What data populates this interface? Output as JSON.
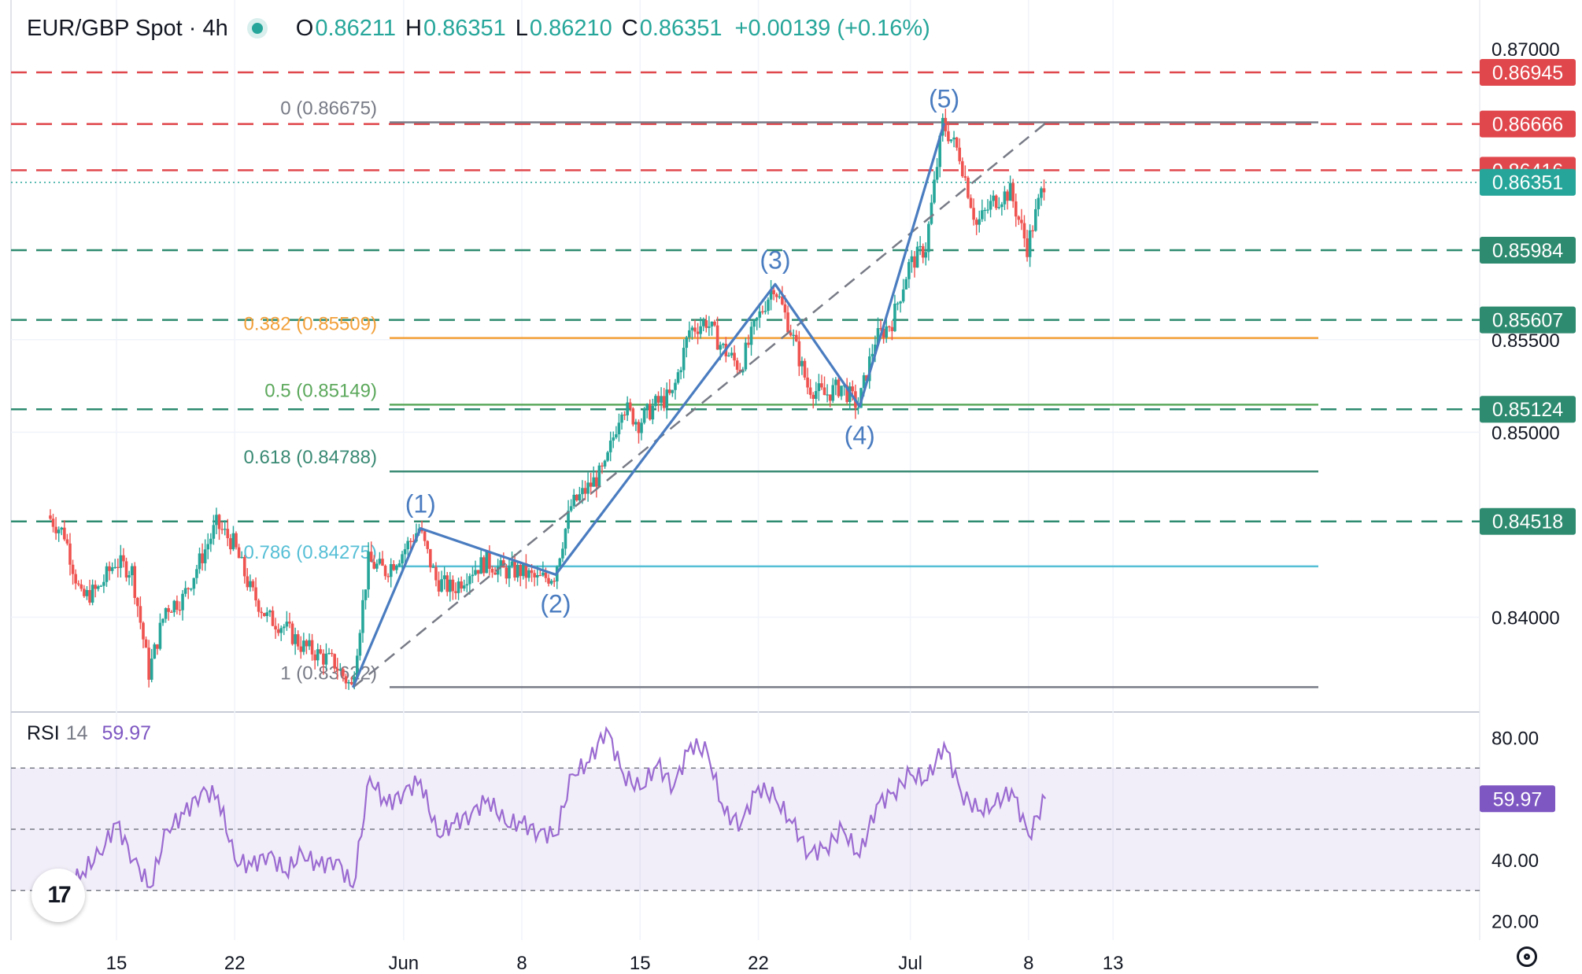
{
  "header": {
    "symbol": "EUR/GBP Spot · 4h",
    "o_label": "O",
    "o_value": "0.86211",
    "h_label": "H",
    "h_value": "0.86351",
    "l_label": "L",
    "l_value": "0.86210",
    "c_label": "C",
    "c_value": "0.86351",
    "change": "+0.00139 (+0.16%)"
  },
  "rsi_header": {
    "label": "RSI",
    "period": "14",
    "value": "59.97"
  },
  "colors": {
    "up": "#26a69a",
    "down": "#ef5350",
    "red_level": "#e0474c",
    "green_level": "#2e8b6f",
    "wave": "#4a7cc0",
    "fib_orange": "#f2a03a",
    "fib_green": "#5ca85c",
    "fib_darkgreen": "#3a8a74",
    "fib_cyan": "#56bfd6",
    "fib_gray": "#787b86",
    "rsi": "#9b6bd1"
  },
  "chart_data": [
    {
      "type": "candlestick",
      "title": "EUR/GBP Spot · 4h",
      "ylim": [
        0.8353,
        0.8706
      ],
      "x_ticks": [
        "15",
        "22",
        "Jun",
        "8",
        "15",
        "22",
        "Jul",
        "8",
        "13"
      ],
      "y_ticks": [
        "0.84000",
        "0.85000",
        "0.85500"
      ],
      "y_tick_values": [
        0.84,
        0.85,
        0.855
      ],
      "top_partial_tick": "0.87000",
      "last_price": "0.86351",
      "horizontal_levels": [
        {
          "value": 0.86945,
          "label": "0.86945",
          "kind": "resistance"
        },
        {
          "value": 0.86666,
          "label": "0.86666",
          "kind": "resistance"
        },
        {
          "value": 0.86416,
          "label": "0.86416",
          "kind": "resistance"
        },
        {
          "value": 0.85984,
          "label": "0.85984",
          "kind": "support"
        },
        {
          "value": 0.85607,
          "label": "0.85607",
          "kind": "support"
        },
        {
          "value": 0.85124,
          "label": "0.85124",
          "kind": "support"
        },
        {
          "value": 0.84518,
          "label": "0.84518",
          "kind": "support"
        }
      ],
      "fibonacci": [
        {
          "ratio": "0",
          "value": 0.86675,
          "label": "0 (0.86675)",
          "color_key": "fib_gray"
        },
        {
          "ratio": "0.382",
          "value": 0.85509,
          "label": "0.382 (0.85509)",
          "color_key": "fib_orange"
        },
        {
          "ratio": "0.5",
          "value": 0.85149,
          "label": "0.5 (0.85149)",
          "color_key": "fib_green"
        },
        {
          "ratio": "0.618",
          "value": 0.84788,
          "label": "0.618 (0.84788)",
          "color_key": "fib_darkgreen"
        },
        {
          "ratio": "0.786",
          "value": 0.84275,
          "label": "0.786 (0.84275)",
          "color_key": "fib_cyan"
        },
        {
          "ratio": "1",
          "value": 0.83622,
          "label": "1 (0.83622)",
          "color_key": "fib_gray"
        }
      ],
      "elliott_waves": [
        {
          "label": "",
          "date": "May 29",
          "value": 0.8362
        },
        {
          "label": "(1)",
          "date": "Jun 2",
          "value": 0.8448
        },
        {
          "label": "(2)",
          "date": "Jun 10",
          "value": 0.8423
        },
        {
          "label": "(3)",
          "date": "Jun 23",
          "value": 0.858
        },
        {
          "label": "(4)",
          "date": "Jun 28",
          "value": 0.8514
        },
        {
          "label": "(5)",
          "date": "Jul 3",
          "value": 0.8667
        }
      ],
      "trend_channel": [
        {
          "date": "May 29",
          "value": 0.8362
        },
        {
          "date": "Jul 9",
          "value": 0.8667
        }
      ],
      "price_path": [
        {
          "date": "May 11",
          "value": 0.8455
        },
        {
          "date": "May 12",
          "value": 0.8445
        },
        {
          "date": "May 13",
          "value": 0.841
        },
        {
          "date": "May 14",
          "value": 0.8415
        },
        {
          "date": "May 15",
          "value": 0.843
        },
        {
          "date": "May 16",
          "value": 0.8425
        },
        {
          "date": "May 17",
          "value": 0.837
        },
        {
          "date": "May 18",
          "value": 0.8405
        },
        {
          "date": "May 19",
          "value": 0.841
        },
        {
          "date": "May 20",
          "value": 0.843
        },
        {
          "date": "May 21",
          "value": 0.845
        },
        {
          "date": "May 22",
          "value": 0.844
        },
        {
          "date": "May 23",
          "value": 0.8415
        },
        {
          "date": "May 24",
          "value": 0.84
        },
        {
          "date": "May 25",
          "value": 0.8395
        },
        {
          "date": "May 26",
          "value": 0.8385
        },
        {
          "date": "May 27",
          "value": 0.838
        },
        {
          "date": "May 28",
          "value": 0.8375
        },
        {
          "date": "May 29",
          "value": 0.8362
        },
        {
          "date": "May 30",
          "value": 0.843
        },
        {
          "date": "May 31",
          "value": 0.8425
        },
        {
          "date": "Jun 1",
          "value": 0.8435
        },
        {
          "date": "Jun 2",
          "value": 0.8448
        },
        {
          "date": "Jun 3",
          "value": 0.842
        },
        {
          "date": "Jun 4",
          "value": 0.8415
        },
        {
          "date": "Jun 5",
          "value": 0.8425
        },
        {
          "date": "Jun 6",
          "value": 0.843
        },
        {
          "date": "Jun 7",
          "value": 0.8425
        },
        {
          "date": "Jun 8",
          "value": 0.8425
        },
        {
          "date": "Jun 9",
          "value": 0.842
        },
        {
          "date": "Jun 10",
          "value": 0.8423
        },
        {
          "date": "Jun 11",
          "value": 0.846
        },
        {
          "date": "Jun 12",
          "value": 0.847
        },
        {
          "date": "Jun 13",
          "value": 0.848
        },
        {
          "date": "Jun 14",
          "value": 0.8515
        },
        {
          "date": "Jun 15",
          "value": 0.8505
        },
        {
          "date": "Jun 16",
          "value": 0.8515
        },
        {
          "date": "Jun 17",
          "value": 0.852
        },
        {
          "date": "Jun 18",
          "value": 0.8555
        },
        {
          "date": "Jun 19",
          "value": 0.856
        },
        {
          "date": "Jun 20",
          "value": 0.8545
        },
        {
          "date": "Jun 21",
          "value": 0.8535
        },
        {
          "date": "Jun 22",
          "value": 0.856
        },
        {
          "date": "Jun 23",
          "value": 0.858
        },
        {
          "date": "Jun 24",
          "value": 0.8555
        },
        {
          "date": "Jun 25",
          "value": 0.8525
        },
        {
          "date": "Jun 26",
          "value": 0.852
        },
        {
          "date": "Jun 27",
          "value": 0.8525
        },
        {
          "date": "Jun 28",
          "value": 0.8514
        },
        {
          "date": "Jun 29",
          "value": 0.855
        },
        {
          "date": "Jun 30",
          "value": 0.856
        },
        {
          "date": "Jul 1",
          "value": 0.859
        },
        {
          "date": "Jul 2",
          "value": 0.86
        },
        {
          "date": "Jul 3",
          "value": 0.8667
        },
        {
          "date": "Jul 4",
          "value": 0.865
        },
        {
          "date": "Jul 5",
          "value": 0.8612
        },
        {
          "date": "Jul 6",
          "value": 0.8625
        },
        {
          "date": "Jul 7",
          "value": 0.863
        },
        {
          "date": "Jul 8",
          "value": 0.86
        },
        {
          "date": "Jul 9",
          "value": 0.8635
        }
      ]
    },
    {
      "type": "line",
      "title": "RSI 14",
      "ylim": [
        15,
        85
      ],
      "y_ticks": [
        "20.00",
        "40.00",
        "80.00"
      ],
      "y_tick_values": [
        20,
        40,
        80
      ],
      "band": [
        30,
        70
      ],
      "midline": 50,
      "last_value": "59.97",
      "series": [
        {
          "values": [
            {
              "date": "May 11",
              "value": 32
            },
            {
              "date": "May 12",
              "value": 30
            },
            {
              "date": "May 13",
              "value": 36
            },
            {
              "date": "May 14",
              "value": 42
            },
            {
              "date": "May 15",
              "value": 52
            },
            {
              "date": "May 16",
              "value": 40
            },
            {
              "date": "May 17",
              "value": 31
            },
            {
              "date": "May 18",
              "value": 50
            },
            {
              "date": "May 19",
              "value": 55
            },
            {
              "date": "May 20",
              "value": 62
            },
            {
              "date": "May 21",
              "value": 61
            },
            {
              "date": "May 22",
              "value": 40
            },
            {
              "date": "May 23",
              "value": 38
            },
            {
              "date": "May 24",
              "value": 42
            },
            {
              "date": "May 25",
              "value": 36
            },
            {
              "date": "May 26",
              "value": 42
            },
            {
              "date": "May 27",
              "value": 38
            },
            {
              "date": "May 28",
              "value": 40
            },
            {
              "date": "May 29",
              "value": 31
            },
            {
              "date": "May 30",
              "value": 67
            },
            {
              "date": "May 31",
              "value": 58
            },
            {
              "date": "Jun 1",
              "value": 62
            },
            {
              "date": "Jun 2",
              "value": 66
            },
            {
              "date": "Jun 3",
              "value": 48
            },
            {
              "date": "Jun 4",
              "value": 52
            },
            {
              "date": "Jun 5",
              "value": 55
            },
            {
              "date": "Jun 6",
              "value": 60
            },
            {
              "date": "Jun 7",
              "value": 52
            },
            {
              "date": "Jun 8",
              "value": 52
            },
            {
              "date": "Jun 9",
              "value": 49
            },
            {
              "date": "Jun 10",
              "value": 48
            },
            {
              "date": "Jun 11",
              "value": 68
            },
            {
              "date": "Jun 12",
              "value": 72
            },
            {
              "date": "Jun 13",
              "value": 83
            },
            {
              "date": "Jun 14",
              "value": 68
            },
            {
              "date": "Jun 15",
              "value": 63
            },
            {
              "date": "Jun 16",
              "value": 71
            },
            {
              "date": "Jun 17",
              "value": 64
            },
            {
              "date": "Jun 18",
              "value": 78
            },
            {
              "date": "Jun 19",
              "value": 75
            },
            {
              "date": "Jun 20",
              "value": 55
            },
            {
              "date": "Jun 21",
              "value": 52
            },
            {
              "date": "Jun 22",
              "value": 64
            },
            {
              "date": "Jun 23",
              "value": 60
            },
            {
              "date": "Jun 24",
              "value": 52
            },
            {
              "date": "Jun 25",
              "value": 42
            },
            {
              "date": "Jun 26",
              "value": 44
            },
            {
              "date": "Jun 27",
              "value": 50
            },
            {
              "date": "Jun 28",
              "value": 41
            },
            {
              "date": "Jun 29",
              "value": 58
            },
            {
              "date": "Jun 30",
              "value": 62
            },
            {
              "date": "Jul 1",
              "value": 68
            },
            {
              "date": "Jul 2",
              "value": 66
            },
            {
              "date": "Jul 3",
              "value": 78
            },
            {
              "date": "Jul 4",
              "value": 62
            },
            {
              "date": "Jul 5",
              "value": 56
            },
            {
              "date": "Jul 6",
              "value": 58
            },
            {
              "date": "Jul 7",
              "value": 63
            },
            {
              "date": "Jul 8",
              "value": 48
            },
            {
              "date": "Jul 9",
              "value": 60
            }
          ]
        }
      ]
    }
  ]
}
